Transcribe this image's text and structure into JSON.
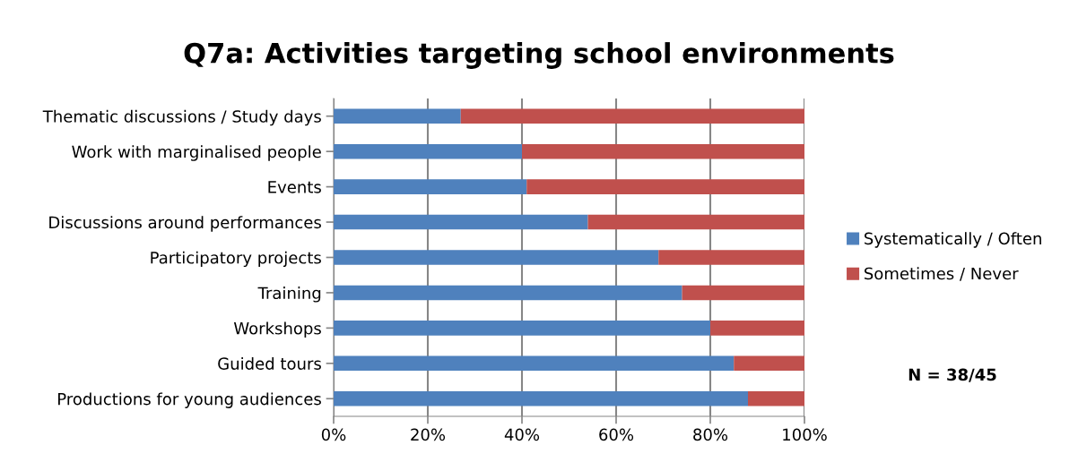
{
  "chart_data": {
    "type": "bar",
    "orientation": "horizontal",
    "stacked": true,
    "title": "Q7a: Activities targeting school environments",
    "categories": [
      "Thematic discussions / Study days",
      "Work with marginalised people",
      "Events",
      "Discussions around performances",
      "Participatory projects",
      "Training",
      "Workshops",
      "Guided tours",
      "Productions for young audiences"
    ],
    "series": [
      {
        "name": "Systematically / Often",
        "color": "#4f81bd",
        "values": [
          27,
          40,
          41,
          54,
          69,
          74,
          80,
          85,
          88
        ]
      },
      {
        "name": "Sometimes / Never",
        "color": "#c0504d",
        "values": [
          73,
          60,
          59,
          46,
          31,
          26,
          20,
          15,
          12
        ]
      }
    ],
    "xlim": [
      0,
      100
    ],
    "xticks": [
      {
        "value": 0,
        "label": "0%"
      },
      {
        "value": 20,
        "label": "20%"
      },
      {
        "value": 40,
        "label": "40%"
      },
      {
        "value": 60,
        "label": "60%"
      },
      {
        "value": 80,
        "label": "80%"
      },
      {
        "value": 100,
        "label": "100%"
      }
    ],
    "grid": "x",
    "legend": "right",
    "annotations": [
      "N = 38/45"
    ]
  }
}
